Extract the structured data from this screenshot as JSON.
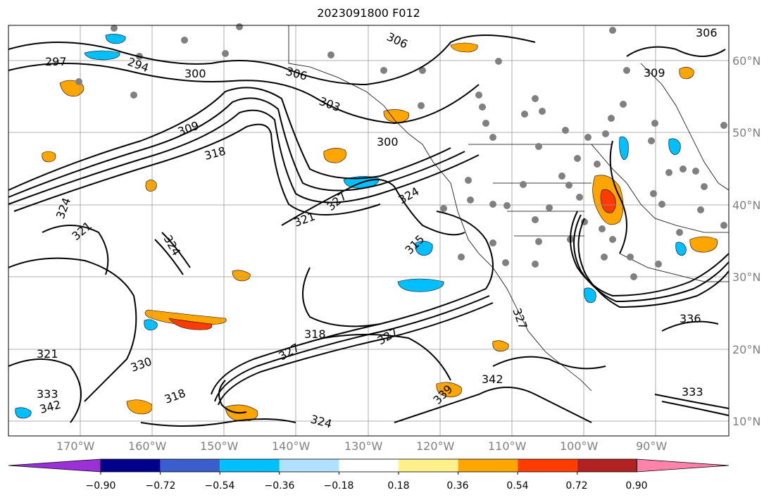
{
  "title": "2023091800 F012",
  "map": {
    "lat_labels": [
      "60°N",
      "50°N",
      "40°N",
      "30°N",
      "20°N",
      "10°N"
    ],
    "lon_labels": [
      "170°W",
      "160°W",
      "150°W",
      "140°W",
      "130°W",
      "120°W",
      "110°W",
      "100°W",
      "90°W"
    ],
    "contour_labels": [
      "297",
      "294",
      "300",
      "306",
      "306",
      "303",
      "309",
      "300",
      "309",
      "306",
      "318",
      "324",
      "321",
      "324",
      "327",
      "321",
      "327",
      "324",
      "315",
      "327",
      "318",
      "321",
      "333",
      "330",
      "318",
      "324",
      "342",
      "339",
      "342",
      "336",
      "333",
      "327"
    ]
  },
  "colorbar": {
    "colors": [
      "#9b30d9",
      "#00008b",
      "#3a5fcd",
      "#00bfff",
      "#b0e2ff",
      "#ffffff",
      "#fff08c",
      "#ffa500",
      "#ff3c00",
      "#b22222",
      "#ff82ab"
    ],
    "ticks": [
      "−0.90",
      "−0.72",
      "−0.54",
      "−0.36",
      "−0.18",
      "0.18",
      "0.36",
      "0.54",
      "0.72",
      "0.90"
    ]
  }
}
